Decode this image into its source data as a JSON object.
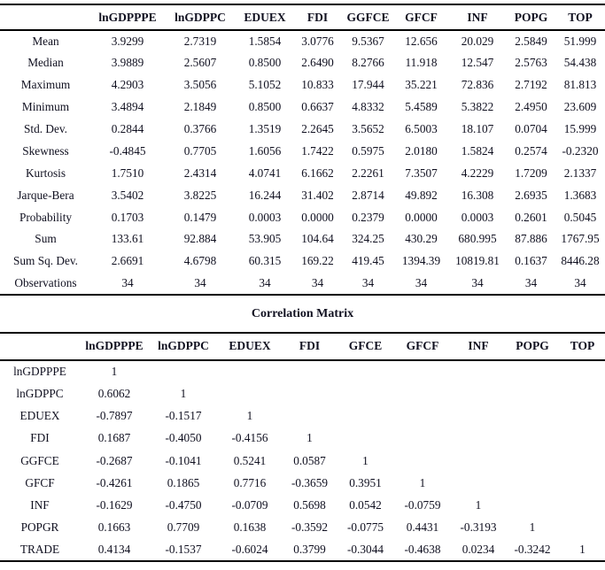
{
  "descriptive_stats": {
    "columns": [
      "",
      "lnGDPPPE",
      "lnGDPPC",
      "EDUEX",
      "FDI",
      "GGFCE",
      "GFCF",
      "INF",
      "POPG",
      "TOP"
    ],
    "rows": [
      {
        "label": "Mean",
        "values": [
          "3.9299",
          "2.7319",
          "1.5854",
          "3.0776",
          "9.5367",
          "12.656",
          "20.029",
          "2.5849",
          "51.999"
        ]
      },
      {
        "label": "Median",
        "values": [
          "3.9889",
          "2.5607",
          "0.8500",
          "2.6490",
          "8.2766",
          "11.918",
          "12.547",
          "2.5763",
          "54.438"
        ]
      },
      {
        "label": "Maximum",
        "values": [
          "4.2903",
          "3.5056",
          "5.1052",
          "10.833",
          "17.944",
          "35.221",
          "72.836",
          "2.7192",
          "81.813"
        ]
      },
      {
        "label": "Minimum",
        "values": [
          "3.4894",
          "2.1849",
          "0.8500",
          "0.6637",
          "4.8332",
          "5.4589",
          "5.3822",
          "2.4950",
          "23.609"
        ]
      },
      {
        "label": "Std. Dev.",
        "values": [
          "0.2844",
          "0.3766",
          "1.3519",
          "2.2645",
          "3.5652",
          "6.5003",
          "18.107",
          "0.0704",
          "15.999"
        ]
      },
      {
        "label": "Skewness",
        "values": [
          "-0.4845",
          "0.7705",
          "1.6056",
          "1.7422",
          "0.5975",
          "2.0180",
          "1.5824",
          "0.2574",
          "-0.2320"
        ]
      },
      {
        "label": "Kurtosis",
        "values": [
          "1.7510",
          "2.4314",
          "4.0741",
          "6.1662",
          "2.2261",
          "7.3507",
          "4.2229",
          "1.7209",
          "2.1337"
        ]
      },
      {
        "label": "Jarque-Bera",
        "values": [
          "3.5402",
          "3.8225",
          "16.244",
          "31.402",
          "2.8714",
          "49.892",
          "16.308",
          "2.6935",
          "1.3683"
        ]
      },
      {
        "label": "Probability",
        "values": [
          "0.1703",
          "0.1479",
          "0.0003",
          "0.0000",
          "0.2379",
          "0.0000",
          "0.0003",
          "0.2601",
          "0.5045"
        ]
      },
      {
        "label": "Sum",
        "values": [
          "133.61",
          "92.884",
          "53.905",
          "104.64",
          "324.25",
          "430.29",
          "680.995",
          "87.886",
          "1767.95"
        ]
      },
      {
        "label": "Sum Sq. Dev.",
        "values": [
          "2.6691",
          "4.6798",
          "60.315",
          "169.22",
          "419.45",
          "1394.39",
          "10819.81",
          "0.1637",
          "8446.28"
        ]
      },
      {
        "label": "Observations",
        "values": [
          "34",
          "34",
          "34",
          "34",
          "34",
          "34",
          "34",
          "34",
          "34"
        ]
      }
    ]
  },
  "correlation_matrix": {
    "title": "Correlation Matrix",
    "columns": [
      "",
      "lnGDPPPE",
      "lnGDPPC",
      "EDUEX",
      "FDI",
      "GFCE",
      "GFCF",
      "INF",
      "POPG",
      "TOP"
    ],
    "rows": [
      {
        "label": "lnGDPPPE",
        "values": [
          "1",
          "",
          "",
          "",
          "",
          "",
          "",
          "",
          ""
        ]
      },
      {
        "label": "lnGDPPC",
        "values": [
          "0.6062",
          "1",
          "",
          "",
          "",
          "",
          "",
          "",
          ""
        ]
      },
      {
        "label": "EDUEX",
        "values": [
          "-0.7897",
          "-0.1517",
          "1",
          "",
          "",
          "",
          "",
          "",
          ""
        ]
      },
      {
        "label": "FDI",
        "values": [
          "0.1687",
          "-0.4050",
          "-0.4156",
          "1",
          "",
          "",
          "",
          "",
          ""
        ]
      },
      {
        "label": "GGFCE",
        "values": [
          "-0.2687",
          "-0.1041",
          "0.5241",
          "0.0587",
          "1",
          "",
          "",
          "",
          ""
        ]
      },
      {
        "label": "GFCF",
        "values": [
          "-0.4261",
          "0.1865",
          "0.7716",
          "-0.3659",
          "0.3951",
          "1",
          "",
          "",
          ""
        ]
      },
      {
        "label": "INF",
        "values": [
          "-0.1629",
          "-0.4750",
          "-0.0709",
          "0.5698",
          "0.0542",
          "-0.0759",
          "1",
          "",
          ""
        ]
      },
      {
        "label": "POPGR",
        "values": [
          "0.1663",
          "0.7709",
          "0.1638",
          "-0.3592",
          "-0.0775",
          "0.4431",
          "-0.3193",
          "1",
          ""
        ]
      },
      {
        "label": "TRADE",
        "values": [
          "0.4134",
          "-0.1537",
          "-0.6024",
          "0.3799",
          "-0.3044",
          "-0.4638",
          "0.0234",
          "-0.3242",
          "1"
        ]
      }
    ]
  }
}
